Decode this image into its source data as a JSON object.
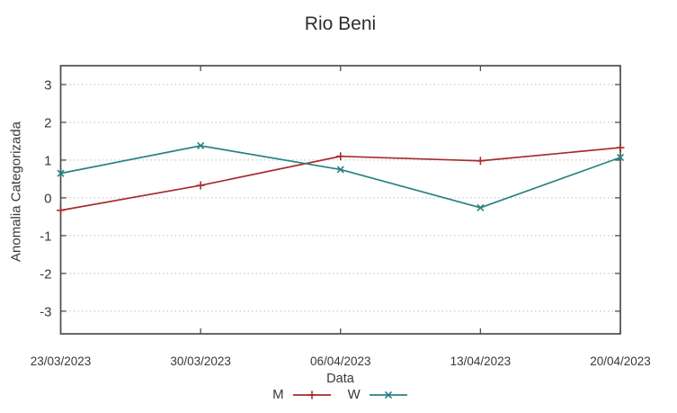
{
  "title": "Rio Beni",
  "chart_data": {
    "type": "line",
    "title": "Rio Beni",
    "xlabel": "Data",
    "ylabel": "Anomalia Categorizada",
    "categories": [
      "23/03/2023",
      "30/03/2023",
      "06/04/2023",
      "13/04/2023",
      "20/04/2023"
    ],
    "series": [
      {
        "name": "M",
        "color": "#a62c2c",
        "marker": "plus",
        "values": [
          -0.33,
          0.33,
          1.1,
          0.98,
          1.33
        ]
      },
      {
        "name": "W",
        "color": "#2a8181",
        "marker": "cross",
        "values": [
          0.65,
          1.38,
          0.75,
          -0.26,
          1.07
        ]
      }
    ],
    "yticks": [
      -3,
      -2,
      -1,
      0,
      1,
      2,
      3
    ],
    "ylim": [
      -3.6,
      3.5
    ],
    "grid": "horizontal-dotted",
    "legend_position": "bottom-center"
  }
}
